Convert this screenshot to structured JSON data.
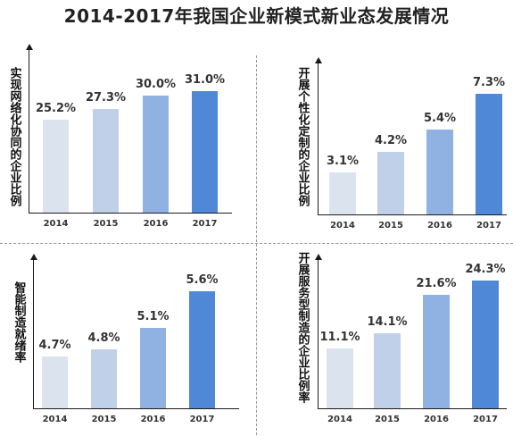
{
  "title": "2014-2017年我国企业新模式新业态发展情况",
  "colors": [
    "#dbe3ef",
    "#bfd0e8",
    "#8fb2e2",
    "#4f88d6"
  ],
  "chart_data": [
    {
      "type": "bar",
      "ylabel": "实现网络化协同的企业比例",
      "categories": [
        "2014",
        "2015",
        "2016",
        "2017"
      ],
      "values": [
        25.2,
        27.3,
        30.0,
        31.0
      ],
      "labels": [
        "25.2%",
        "27.3%",
        "30.0%",
        "31.0%"
      ]
    },
    {
      "type": "bar",
      "ylabel": "开展个性化定制的企业比例",
      "categories": [
        "2014",
        "2015",
        "2016",
        "2017"
      ],
      "values": [
        3.1,
        4.2,
        5.4,
        7.3
      ],
      "labels": [
        "3.1%",
        "4.2%",
        "5.4%",
        "7.3%"
      ]
    },
    {
      "type": "bar",
      "ylabel": "智能制造就绪率",
      "categories": [
        "2014",
        "2015",
        "2016",
        "2017"
      ],
      "values": [
        4.7,
        4.8,
        5.1,
        5.6
      ],
      "labels": [
        "4.7%",
        "4.8%",
        "5.1%",
        "5.6%"
      ]
    },
    {
      "type": "bar",
      "ylabel": "开展服务型制造的企业比例率",
      "categories": [
        "2014",
        "2015",
        "2016",
        "2017"
      ],
      "values": [
        11.1,
        14.1,
        21.6,
        24.3
      ],
      "labels": [
        "11.1%",
        "14.1%",
        "21.6%",
        "24.3%"
      ]
    }
  ]
}
